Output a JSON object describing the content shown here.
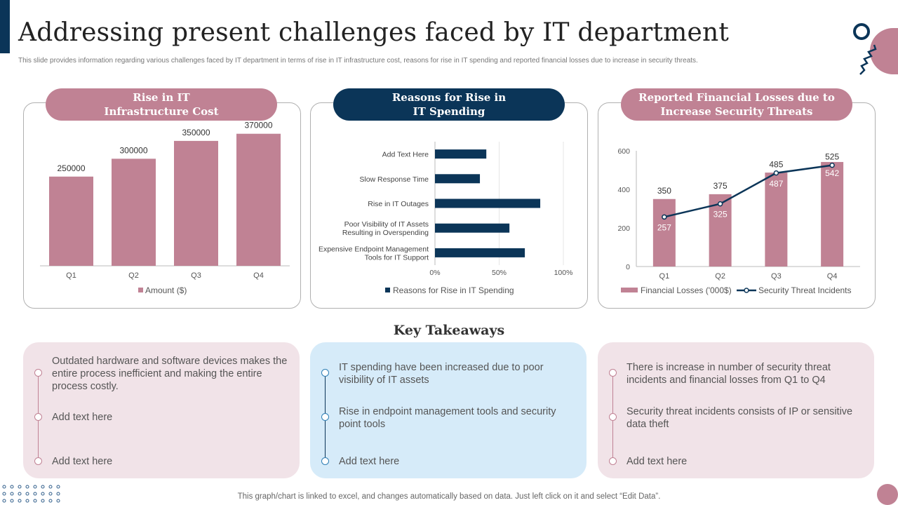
{
  "header": {
    "title": "Addressing present challenges faced by IT department",
    "subtitle": "This slide provides information regarding various challenges faced by IT department in terms of rise in IT infrastructure cost, reasons for rise in IT spending and reported financial losses due to increase in security threats."
  },
  "colors": {
    "pink": "#c08294",
    "navy": "#0b3558",
    "pink_bg": "#f1e3e8",
    "blue_bg": "#d6ebf9"
  },
  "panels": {
    "p1": {
      "title": "Rise in IT\nInfrastructure  Cost"
    },
    "p2": {
      "title": "Reasons for Rise in\nIT Spending"
    },
    "p3": {
      "title": "Reported Financial Losses due to\nIncrease Security Threats"
    }
  },
  "chart_data": [
    {
      "type": "bar",
      "categories": [
        "Q1",
        "Q2",
        "Q3",
        "Q4"
      ],
      "series": [
        {
          "name": "Amount ($)",
          "values": [
            250000,
            300000,
            350000,
            370000
          ]
        }
      ],
      "ylim": [
        0,
        450000
      ],
      "grid": false,
      "legend": "bottom"
    },
    {
      "type": "bar",
      "orientation": "horizontal",
      "categories": [
        "Add Text Here",
        "Slow Response Time",
        "Rise in IT Outages",
        "Poor Visibility of IT Assets\nResulting in Overspending",
        "Expensive Endpoint Management\nTools for IT Support"
      ],
      "series": [
        {
          "name": "Reasons for Rise in IT Spending",
          "values": [
            0.4,
            0.35,
            0.82,
            0.58,
            0.7
          ]
        }
      ],
      "xlim": [
        0,
        1
      ],
      "xticks": [
        "0%",
        "50%",
        "100%"
      ],
      "legend": "bottom"
    },
    {
      "type": "bar",
      "categories": [
        "Q1",
        "Q2",
        "Q3",
        "Q4"
      ],
      "series": [
        {
          "name": "Financial Losses  ('000$)",
          "type": "bar",
          "values": [
            350,
            375,
            487,
            542
          ]
        },
        {
          "name": "Security Threat Incidents",
          "type": "line",
          "values": [
            257,
            325,
            485,
            525
          ]
        }
      ],
      "ylim": [
        0,
        600
      ],
      "yticks": [
        "0",
        "200",
        "400",
        "600"
      ],
      "legend": "bottom"
    }
  ],
  "key_takeaways": {
    "title": "Key Takeaways",
    "cards": [
      {
        "items": [
          "Outdated hardware and software devices makes the entire process inefficient and making the entire process costly.",
          "Add text here",
          "Add text here"
        ]
      },
      {
        "items": [
          "IT spending have been increased due to poor visibility of IT assets",
          "Rise in endpoint management tools and security point tools",
          "Add text here"
        ]
      },
      {
        "items": [
          "There is increase in number of security threat incidents and financial losses from Q1 to Q4",
          "Security threat incidents consists of IP or sensitive data theft",
          "Add text here"
        ]
      }
    ]
  },
  "footer": "This graph/chart is linked to excel,  and changes automatically based on data. Just left click on it and select “Edit Data”."
}
